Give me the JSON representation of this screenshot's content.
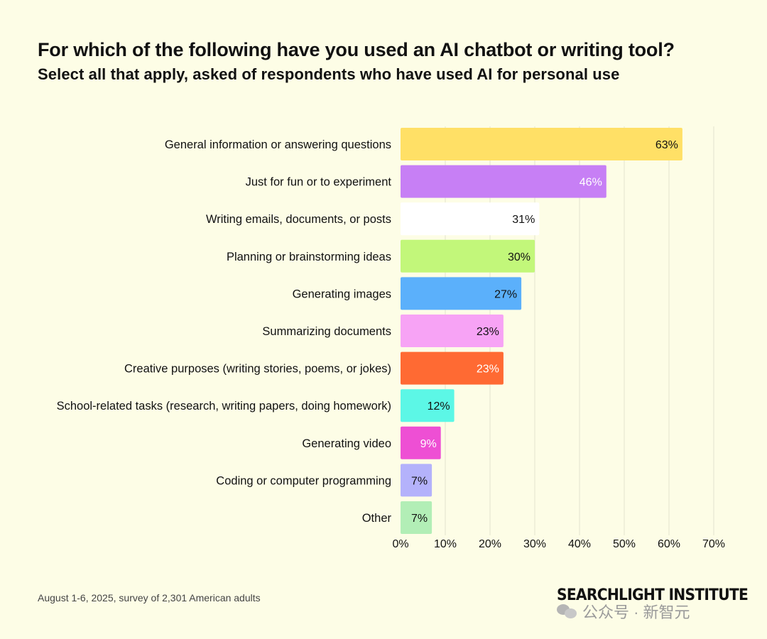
{
  "title": "For which of the following have you used an AI chatbot or writing tool?",
  "subtitle": "Select all that apply, asked of respondents who have used AI for personal use",
  "footnote": "August 1-6, 2025, survey of 2,301 American adults",
  "logo": "SEARCHLIGHT INSTITUTE",
  "watermark": "公众号 · 新智元",
  "chart_data": {
    "type": "bar",
    "orientation": "horizontal",
    "categories": [
      "General information or answering questions",
      "Just for fun or to experiment",
      "Writing emails, documents, or posts",
      "Planning or brainstorming ideas",
      "Generating images",
      "Summarizing documents",
      "Creative purposes (writing stories, poems, or jokes)",
      "School-related tasks (research, writing papers, doing homework)",
      "Generating video",
      "Coding or computer programming",
      "Other"
    ],
    "values": [
      63,
      46,
      31,
      30,
      27,
      23,
      23,
      12,
      9,
      7,
      7
    ],
    "value_labels": [
      "63%",
      "46%",
      "31%",
      "30%",
      "27%",
      "23%",
      "23%",
      "12%",
      "9%",
      "7%",
      "7%"
    ],
    "colors": [
      "#ffe066",
      "#c77ff5",
      "#ffffff",
      "#c2f77a",
      "#5bb0fb",
      "#f7a3f5",
      "#ff6a33",
      "#5cf7e6",
      "#ee4fd4",
      "#b4b2fb",
      "#b2eeb6"
    ],
    "label_colors": [
      "#111111",
      "#ffffff",
      "#111111",
      "#111111",
      "#111111",
      "#111111",
      "#ffffff",
      "#111111",
      "#ffffff",
      "#111111",
      "#111111"
    ],
    "xlim": [
      0,
      70
    ],
    "xticks": [
      "0%",
      "10%",
      "20%",
      "30%",
      "40%",
      "50%",
      "60%",
      "70%"
    ],
    "grid": true,
    "xlabel": "",
    "ylabel": ""
  }
}
